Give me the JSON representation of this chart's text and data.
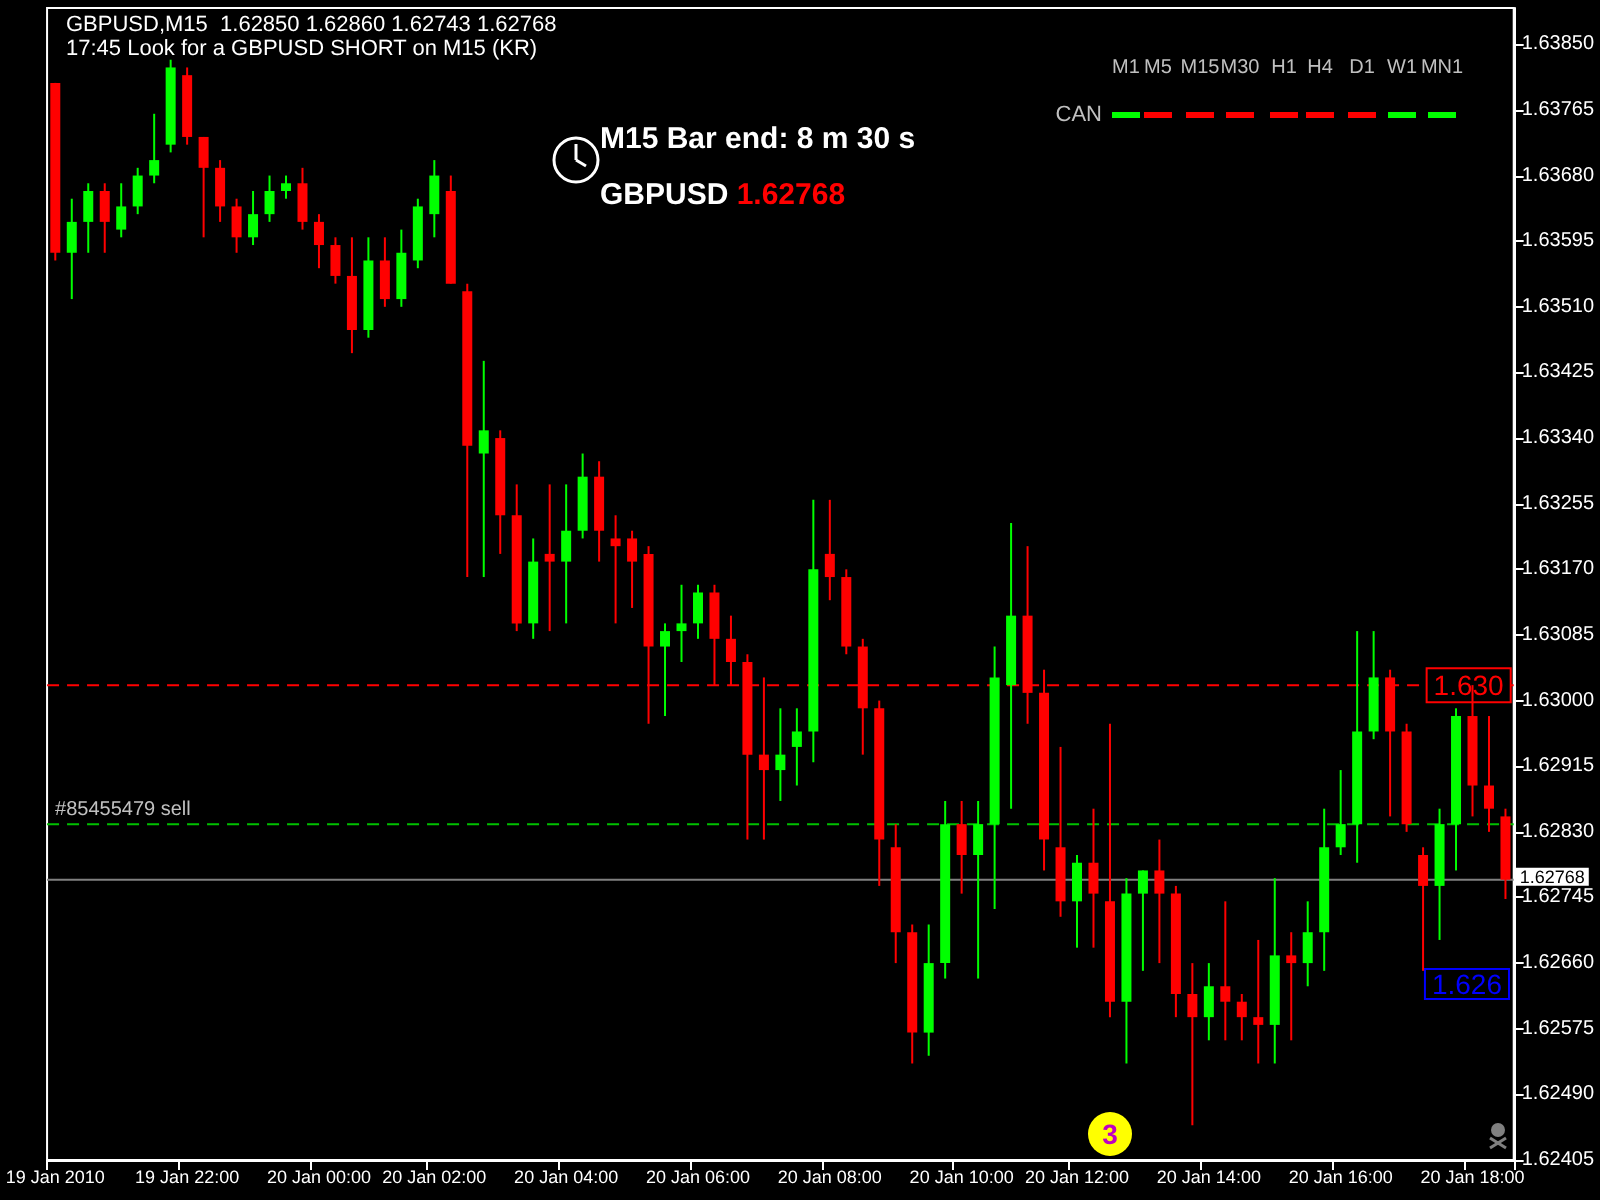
{
  "chart_data": {
    "type": "candlestick",
    "title": "GBPUSD,M15  1.62850 1.62860 1.62743 1.62768",
    "subtitle": "17:45 Look for a GBPUSD SHORT on M15 (KR)",
    "categories": [
      "19 Jan 2010",
      null,
      null,
      null,
      null,
      null,
      null,
      null,
      "19 Jan 22:00",
      null,
      null,
      null,
      null,
      null,
      null,
      null,
      "20 Jan 00:00",
      null,
      null,
      null,
      null,
      null,
      null,
      "20 Jan 02:00",
      null,
      null,
      null,
      null,
      null,
      null,
      null,
      "20 Jan 04:00",
      null,
      null,
      null,
      null,
      null,
      null,
      null,
      "20 Jan 06:00",
      null,
      null,
      null,
      null,
      null,
      null,
      null,
      "20 Jan 08:00",
      null,
      null,
      null,
      null,
      null,
      null,
      null,
      "20 Jan 10:00",
      null,
      null,
      null,
      null,
      null,
      null,
      "20 Jan 12:00",
      null,
      null,
      null,
      null,
      null,
      null,
      null,
      "20 Jan 14:00",
      null,
      null,
      null,
      null,
      null,
      null,
      null,
      "20 Jan 16:00",
      null,
      null,
      null,
      null,
      null,
      null,
      null,
      "20 Jan 18:00",
      null,
      null
    ],
    "colors": [
      "#ff0000",
      "#00ff00",
      "#00ff00",
      "#ff0000",
      "#00ff00",
      "#00ff00",
      "#00ff00",
      "#00ff00",
      "#ff0000",
      "#ff0000",
      "#ff0000",
      "#ff0000",
      "#00ff00",
      "#00ff00",
      "#00ff00",
      "#ff0000",
      "#ff0000",
      "#ff0000",
      "#ff0000",
      "#00ff00",
      "#ff0000",
      "#00ff00",
      "#00ff00",
      "#00ff00",
      "#ff0000",
      "#ff0000",
      "#00ff00",
      "#ff0000",
      "#ff0000",
      "#00ff00",
      "#ff0000",
      "#00ff00",
      "#00ff00",
      "#ff0000",
      "#ff0000",
      "#ff0000",
      "#ff0000",
      "#00ff00",
      "#00ff00",
      "#00ff00",
      "#ff0000",
      "#ff0000",
      "#ff0000",
      "#ff0000",
      "#00ff00",
      "#00ff00",
      "#00ff00",
      "#ff0000",
      "#ff0000",
      "#ff0000",
      "#ff0000",
      "#ff0000",
      "#ff0000",
      "#00ff00",
      "#00ff00",
      "#ff0000",
      "#00ff00",
      "#00ff00",
      "#00ff00",
      "#ff0000",
      "#ff0000",
      "#ff0000",
      "#00ff00",
      "#ff0000",
      "#ff0000",
      "#00ff00",
      "#00ff00",
      "#ff0000",
      "#ff0000",
      "#ff0000",
      "#00ff00",
      "#ff0000",
      "#ff0000",
      "#ff0000",
      "#00ff00",
      "#ff0000",
      "#00ff00",
      "#00ff00",
      "#00ff00",
      "#00ff00",
      "#00ff00",
      "#ff0000",
      "#ff0000",
      "#ff0000",
      "#00ff00",
      "#00ff00",
      "#ff0000",
      "#ff0000",
      "#ff0000"
    ],
    "ohlc": [
      [
        1.638,
        1.638,
        1.6357,
        1.6358
      ],
      [
        1.6358,
        1.6365,
        1.6352,
        1.6362
      ],
      [
        1.6362,
        1.6367,
        1.6358,
        1.6366
      ],
      [
        1.6366,
        1.6367,
        1.6358,
        1.6362
      ],
      [
        1.6361,
        1.6367,
        1.636,
        1.6364
      ],
      [
        1.6364,
        1.6369,
        1.6363,
        1.6368
      ],
      [
        1.6368,
        1.6376,
        1.6367,
        1.637
      ],
      [
        1.6372,
        1.6383,
        1.6371,
        1.6382
      ],
      [
        1.6381,
        1.6382,
        1.6372,
        1.6373
      ],
      [
        1.6373,
        1.6373,
        1.636,
        1.6369
      ],
      [
        1.6369,
        1.637,
        1.6362,
        1.6364
      ],
      [
        1.6364,
        1.6365,
        1.6358,
        1.636
      ],
      [
        1.636,
        1.6366,
        1.6359,
        1.6363
      ],
      [
        1.6363,
        1.6368,
        1.6362,
        1.6366
      ],
      [
        1.6366,
        1.6368,
        1.6365,
        1.6367
      ],
      [
        1.6367,
        1.6369,
        1.6361,
        1.6362
      ],
      [
        1.6362,
        1.6363,
        1.6356,
        1.6359
      ],
      [
        1.6359,
        1.636,
        1.6354,
        1.6355
      ],
      [
        1.6355,
        1.636,
        1.6345,
        1.6348
      ],
      [
        1.6348,
        1.636,
        1.6347,
        1.6357
      ],
      [
        1.6357,
        1.636,
        1.6351,
        1.6352
      ],
      [
        1.6352,
        1.6361,
        1.6351,
        1.6358
      ],
      [
        1.6357,
        1.6365,
        1.6356,
        1.6364
      ],
      [
        1.6363,
        1.637,
        1.636,
        1.6368
      ],
      [
        1.6366,
        1.6368,
        1.6354,
        1.6354
      ],
      [
        1.6353,
        1.6354,
        1.6316,
        1.6333
      ],
      [
        1.6332,
        1.6344,
        1.6316,
        1.6335
      ],
      [
        1.6334,
        1.6335,
        1.6319,
        1.6324
      ],
      [
        1.6324,
        1.6328,
        1.6309,
        1.631
      ],
      [
        1.631,
        1.6321,
        1.6308,
        1.6318
      ],
      [
        1.6319,
        1.6328,
        1.6309,
        1.6318
      ],
      [
        1.6318,
        1.6328,
        1.631,
        1.6322
      ],
      [
        1.6322,
        1.6332,
        1.6321,
        1.6329
      ],
      [
        1.6329,
        1.6331,
        1.6318,
        1.6322
      ],
      [
        1.6321,
        1.6324,
        1.631,
        1.632
      ],
      [
        1.6321,
        1.6322,
        1.6312,
        1.6318
      ],
      [
        1.6319,
        1.632,
        1.6297,
        1.6307
      ],
      [
        1.6307,
        1.631,
        1.6298,
        1.6309
      ],
      [
        1.6309,
        1.6315,
        1.6305,
        1.631
      ],
      [
        1.631,
        1.6315,
        1.6308,
        1.6314
      ],
      [
        1.6314,
        1.6315,
        1.6302,
        1.6308
      ],
      [
        1.6308,
        1.6311,
        1.6302,
        1.6305
      ],
      [
        1.6305,
        1.6306,
        1.6282,
        1.6293
      ],
      [
        1.6293,
        1.6303,
        1.6282,
        1.6291
      ],
      [
        1.6291,
        1.6299,
        1.6287,
        1.6293
      ],
      [
        1.6294,
        1.6299,
        1.6289,
        1.6296
      ],
      [
        1.6296,
        1.6326,
        1.6292,
        1.6317
      ],
      [
        1.6319,
        1.6326,
        1.6313,
        1.6316
      ],
      [
        1.6316,
        1.6317,
        1.6306,
        1.6307
      ],
      [
        1.6307,
        1.6308,
        1.6293,
        1.6299
      ],
      [
        1.6299,
        1.63,
        1.6276,
        1.6282
      ],
      [
        1.6281,
        1.6284,
        1.6266,
        1.627
      ],
      [
        1.627,
        1.6271,
        1.6253,
        1.6257
      ],
      [
        1.6257,
        1.6271,
        1.6254,
        1.6266
      ],
      [
        1.6266,
        1.6287,
        1.6264,
        1.6284
      ],
      [
        1.6284,
        1.6287,
        1.6275,
        1.628
      ],
      [
        1.628,
        1.6287,
        1.6264,
        1.6284
      ],
      [
        1.6284,
        1.6307,
        1.6273,
        1.6303
      ],
      [
        1.6302,
        1.6323,
        1.6286,
        1.6311
      ],
      [
        1.6311,
        1.632,
        1.6297,
        1.6301
      ],
      [
        1.6301,
        1.6304,
        1.6278,
        1.6282
      ],
      [
        1.6281,
        1.6294,
        1.6272,
        1.6274
      ],
      [
        1.6274,
        1.628,
        1.6268,
        1.6279
      ],
      [
        1.6279,
        1.6286,
        1.6268,
        1.6275
      ],
      [
        1.6274,
        1.6297,
        1.6259,
        1.6261
      ],
      [
        1.6261,
        1.6277,
        1.6253,
        1.6275
      ],
      [
        1.6275,
        1.6278,
        1.6265,
        1.6278
      ],
      [
        1.6278,
        1.6282,
        1.6266,
        1.6275
      ],
      [
        1.6275,
        1.6276,
        1.6259,
        1.6262
      ],
      [
        1.6262,
        1.6266,
        1.6245,
        1.6259
      ],
      [
        1.6259,
        1.6266,
        1.6256,
        1.6263
      ],
      [
        1.6263,
        1.6274,
        1.6256,
        1.6261
      ],
      [
        1.6261,
        1.6262,
        1.6256,
        1.6259
      ],
      [
        1.6259,
        1.6269,
        1.6253,
        1.6258
      ],
      [
        1.6258,
        1.6277,
        1.6253,
        1.6267
      ],
      [
        1.6267,
        1.627,
        1.6256,
        1.6266
      ],
      [
        1.6266,
        1.6274,
        1.6263,
        1.627
      ],
      [
        1.627,
        1.6286,
        1.6265,
        1.6281
      ],
      [
        1.6281,
        1.6291,
        1.628,
        1.6284
      ],
      [
        1.6284,
        1.6309,
        1.6279,
        1.6296
      ],
      [
        1.6296,
        1.6309,
        1.6295,
        1.6303
      ],
      [
        1.6303,
        1.6304,
        1.6285,
        1.6296
      ],
      [
        1.6296,
        1.6297,
        1.6283,
        1.6284
      ],
      [
        1.628,
        1.6281,
        1.6265,
        1.6276
      ],
      [
        1.6276,
        1.6286,
        1.6269,
        1.6284
      ],
      [
        1.6284,
        1.6299,
        1.6278,
        1.6298
      ],
      [
        1.6298,
        1.6302,
        1.6285,
        1.6289
      ],
      [
        1.6289,
        1.6298,
        1.6283,
        1.6286
      ],
      [
        1.6285,
        1.6286,
        1.62743,
        1.62768
      ]
    ],
    "ylim": [
      1.62405,
      1.63897
    ],
    "yticks": [
      1.62405,
      {
        "value": 1.6249,
        "label": "1.62490"
      },
      1.62575,
      {
        "value": 1.6266,
        "label": "1.62660"
      },
      1.62745,
      {
        "value": 1.6283,
        "label": "1.62830"
      },
      1.62915,
      {
        "value": 1.63,
        "label": "1.63000"
      },
      1.63085,
      {
        "value": 1.6317,
        "label": "1.63170"
      },
      1.63255,
      {
        "value": 1.6334,
        "label": "1.63340"
      },
      1.63425,
      {
        "value": 1.6351,
        "label": "1.63510"
      },
      1.63595,
      {
        "value": 1.6368,
        "label": "1.63680"
      },
      1.63765,
      {
        "value": 1.6385,
        "label": "1.63850"
      }
    ],
    "ref_lines": [
      {
        "axis": "y",
        "value": 1.6302,
        "label": "1.630",
        "color": "#ff0000",
        "line_style": "dashed"
      },
      {
        "axis": "y",
        "value": 1.6284,
        "label": "#85455479 sell",
        "color": "#00c000",
        "line_style": "dashed"
      },
      {
        "axis": "y",
        "value": 1.62768,
        "label": "1.62768",
        "color": "#808080",
        "line_style": "solid"
      }
    ],
    "annotations": [
      "M15 Bar end: 8 m 30 s",
      "GBPUSD 1.62768",
      "CAN",
      "M1",
      "M5",
      "M15",
      "M30",
      "H1",
      "H4",
      "D1",
      "W1",
      "MN1",
      "3",
      "1.626"
    ]
  }
}
